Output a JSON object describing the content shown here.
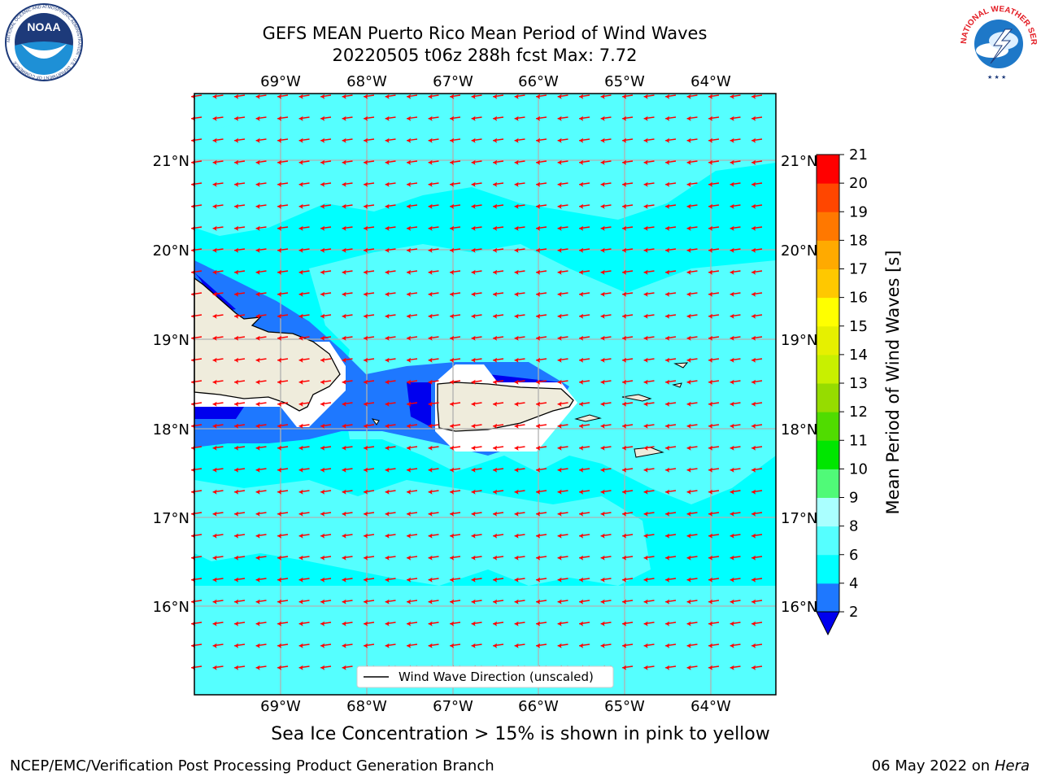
{
  "header": {
    "title_line1": "GEFS MEAN Puerto Rico Mean Period of Wind Waves",
    "title_line2": "20220505 t06z 288h fcst   Max: 7.72"
  },
  "map": {
    "lon_labels": [
      "69°W",
      "68°W",
      "67°W",
      "66°W",
      "65°W",
      "64°W"
    ],
    "lat_labels": [
      "21°N",
      "20°N",
      "19°N",
      "18°N",
      "17°N",
      "16°N"
    ],
    "legend_label": "Wind Wave Direction (unscaled)",
    "land_color": "#efecdc",
    "arrow_color": "#ff0000"
  },
  "colorbar": {
    "label": "Mean Period of Wind Waves [s]",
    "ticks": [
      "2",
      "4",
      "6",
      "8",
      "9",
      "10",
      "11",
      "12",
      "13",
      "14",
      "15",
      "16",
      "17",
      "18",
      "19",
      "20",
      "21"
    ],
    "colors": [
      "#0000ee",
      "#1e78ff",
      "#00ffff",
      "#55ffff",
      "#aaffff",
      "#50fa78",
      "#00e600",
      "#50dc00",
      "#96dc00",
      "#c8f000",
      "#e6f000",
      "#ffff00",
      "#ffc800",
      "#ffaa00",
      "#ff7800",
      "#ff4600",
      "#ff0000"
    ]
  },
  "footer": {
    "ice_note": "Sea Ice Concentration > 15% is shown in pink to yellow",
    "left": "NCEP/EMC/Verification Post Processing Product Generation Branch",
    "right_date": "06 May 2022 on",
    "right_machine": "Hera"
  },
  "logos": {
    "left": "NOAA",
    "left_ring": "NATIONAL OCEANIC AND ATMOSPHERIC ADMINISTRATION · U.S. DEPARTMENT OF COMMERCE",
    "right": "NATIONAL WEATHER SERVICE"
  }
}
